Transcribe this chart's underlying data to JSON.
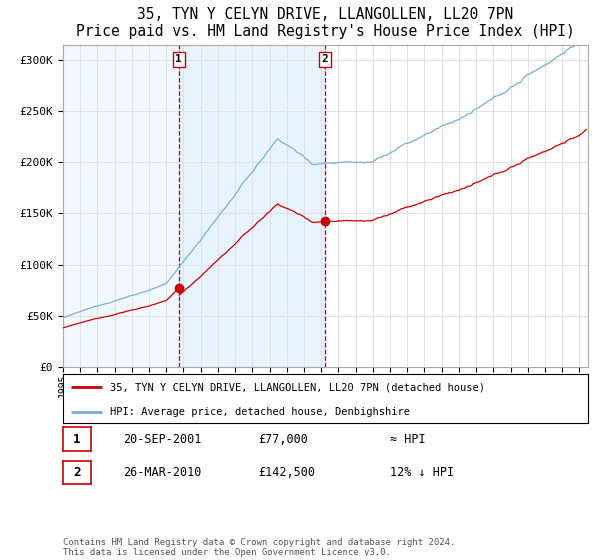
{
  "title": "35, TYN Y CELYN DRIVE, LLANGOLLEN, LL20 7PN",
  "subtitle": "Price paid vs. HM Land Registry's House Price Index (HPI)",
  "legend_line1": "35, TYN Y CELYN DRIVE, LLANGOLLEN, LL20 7PN (detached house)",
  "legend_line2": "HPI: Average price, detached house, Denbighshire",
  "transaction1_label": "1",
  "transaction1_date": "20-SEP-2001",
  "transaction1_price": "£77,000",
  "transaction1_rel": "≈ HPI",
  "transaction2_label": "2",
  "transaction2_date": "26-MAR-2010",
  "transaction2_price": "£142,500",
  "transaction2_rel": "12% ↓ HPI",
  "footer": "Contains HM Land Registry data © Crown copyright and database right 2024.\nThis data is licensed under the Open Government Licence v3.0.",
  "ylabel_ticks": [
    "£0",
    "£50K",
    "£100K",
    "£150K",
    "£200K",
    "£250K",
    "£300K"
  ],
  "ylabel_values": [
    0,
    50000,
    100000,
    150000,
    200000,
    250000,
    300000
  ],
  "ylim": [
    0,
    315000
  ],
  "xlim_start": 1995.0,
  "xlim_end": 2025.5,
  "transaction1_x": 2001.72,
  "transaction2_x": 2010.23,
  "transaction1_y": 77000,
  "transaction2_y": 142500,
  "shading_color": "#ddeeff",
  "line_color_red": "#cc0000",
  "line_color_blue": "#7ab0d4",
  "vline_color": "#cc0000",
  "grid_color": "#dddddd",
  "spine_color": "#aaaaaa"
}
